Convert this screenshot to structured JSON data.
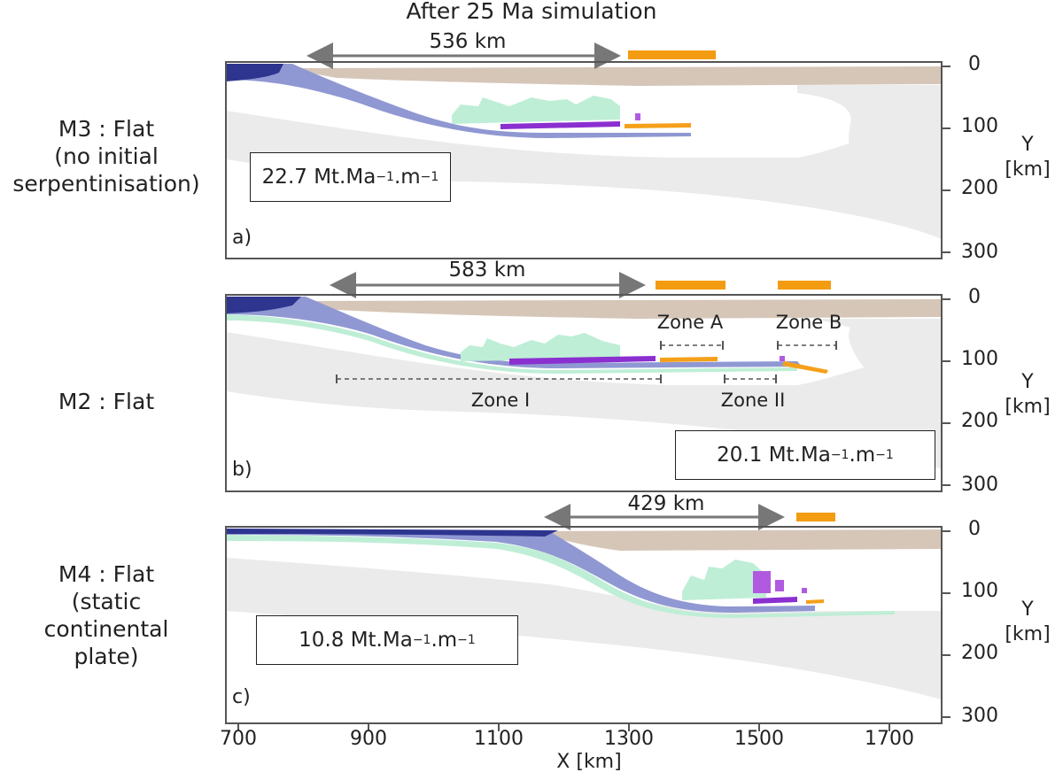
{
  "figure": {
    "title": "After 25 Ma simulation",
    "x_axis": {
      "label": "X [km]",
      "ticks": [
        "700",
        "900",
        "1100",
        "1300",
        "1500",
        "1700"
      ]
    },
    "y_axis": {
      "label_line1": "Y",
      "label_line2": "[km]",
      "ticks": [
        "0",
        "100",
        "200",
        "300"
      ]
    },
    "panels": [
      {
        "letter": "a)",
        "model_lines": [
          "M3 : Flat",
          "(no initial",
          "serpentinisation)"
        ],
        "distance_label": "536 km",
        "rate_value": "22.7 Mt.Ma",
        "rate_exp1": "−1",
        "rate_mid": ".m",
        "rate_exp2": "−1"
      },
      {
        "letter": "b)",
        "model_lines": [
          "M2 : Flat"
        ],
        "distance_label": "583 km",
        "rate_value": "20.1 Mt.Ma",
        "rate_exp1": "−1",
        "rate_mid": ".m",
        "rate_exp2": "−1",
        "zones": {
          "A": "Zone A",
          "B": "Zone B",
          "I": "Zone I",
          "II": "Zone II"
        }
      },
      {
        "letter": "c)",
        "model_lines": [
          "M4 : Flat",
          "(static",
          "continental",
          "plate)"
        ],
        "distance_label": "429 km",
        "rate_value": "10.8 Mt.Ma",
        "rate_exp1": "−1",
        "rate_mid": ".m",
        "rate_exp2": "−1"
      }
    ],
    "colors": {
      "continental_crust": "#d6c6b8",
      "mantle_grey": "#ebebeb",
      "oceanic_slab": "#8f98d2",
      "slab_dark": "#2e358f",
      "serpentine_green": "#bfeed6",
      "purple_markers": "#8b2fd0",
      "orange_markers": "#f5a01a",
      "orange_bar": "#f39c12",
      "arrow_grey": "#777777"
    }
  }
}
